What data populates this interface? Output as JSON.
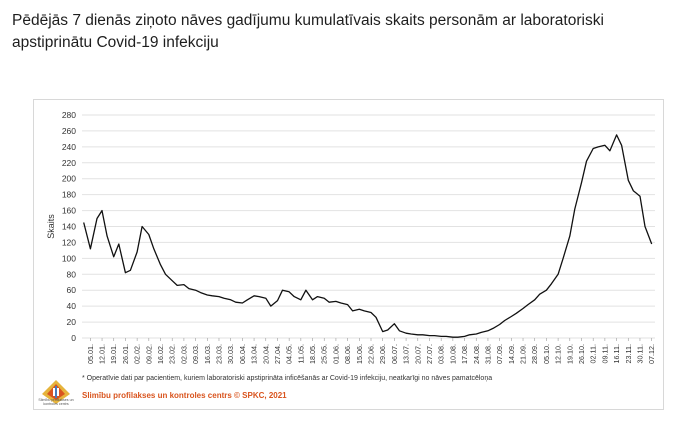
{
  "title": "Pēdējās 7 dienās ziņoto nāves gadījumu kumulatīvais skaits personām ar laboratoriski apstiprinātu Covid-19 infekciju",
  "footnote": "* Operatīvie dati par pacientiem, kuriem laboratoriski apstiprināta inficēšanās ar Covid-19 infekciju, neatkarīgi no nāves pamatcēloņa",
  "source": "Slimību profilakses un kontroles centrs © SPKC, 2021",
  "logo": {
    "icon": "spkc-logo-icon",
    "text": "Slimību profilakses un kontroles centrs"
  },
  "colors": {
    "line": "#111111",
    "grid": "#e2e2e2",
    "source": "#d9541e"
  },
  "chart_data": {
    "type": "line",
    "title": "",
    "xlabel": "",
    "ylabel": "Skaits",
    "ylim": [
      0,
      280
    ],
    "yticks": [
      0,
      20,
      40,
      60,
      80,
      100,
      120,
      140,
      160,
      180,
      200,
      220,
      240,
      260,
      280
    ],
    "grid": true,
    "legend": "none",
    "xticks": [
      "05.01.",
      "12.01.",
      "19.01.",
      "26.01.",
      "02.02.",
      "09.02.",
      "16.02.",
      "23.02.",
      "02.03.",
      "09.03.",
      "16.03.",
      "23.03.",
      "30.03.",
      "06.04.",
      "13.04.",
      "20.04.",
      "27.04.",
      "04.05.",
      "11.05.",
      "18.05.",
      "25.05.",
      "01.06.",
      "08.06.",
      "15.06.",
      "22.06.",
      "29.06.",
      "06.07.",
      "13.07.",
      "20.07.",
      "27.07.",
      "03.08.",
      "10.08.",
      "17.08.",
      "24.08.",
      "31.08.",
      "07.09.",
      "14.09.",
      "21.09.",
      "28.09.",
      "05.10.",
      "12.10.",
      "19.10.",
      "26.10.",
      "02.11.",
      "09.11.",
      "16.11.",
      "23.11.",
      "30.11.",
      "07.12."
    ],
    "series": [
      {
        "x": [
          "01.01.",
          "05.01.",
          "09.01.",
          "12.01.",
          "15.01.",
          "19.01.",
          "22.01.",
          "26.01.",
          "29.01.",
          "02.02.",
          "05.02.",
          "09.02.",
          "12.02.",
          "16.02.",
          "19.02.",
          "23.02.",
          "26.02.",
          "02.03.",
          "05.03.",
          "09.03.",
          "12.03.",
          "16.03.",
          "19.03.",
          "23.03.",
          "26.03.",
          "30.03.",
          "02.04.",
          "06.04.",
          "09.04.",
          "13.04.",
          "16.04.",
          "20.04.",
          "23.04.",
          "27.04.",
          "30.04.",
          "04.05.",
          "07.05.",
          "11.05.",
          "14.05.",
          "18.05.",
          "21.05.",
          "25.05.",
          "28.05.",
          "01.06.",
          "04.06.",
          "08.06.",
          "11.06.",
          "15.06.",
          "18.06.",
          "22.06.",
          "25.06.",
          "29.06.",
          "02.07.",
          "06.07.",
          "09.07.",
          "13.07.",
          "16.07.",
          "20.07.",
          "23.07.",
          "27.07.",
          "30.07.",
          "03.08.",
          "06.08.",
          "10.08.",
          "13.08.",
          "17.08.",
          "20.08.",
          "24.08.",
          "27.08.",
          "31.08.",
          "03.09.",
          "07.09.",
          "10.09.",
          "14.09.",
          "17.09.",
          "21.09.",
          "24.09.",
          "28.09.",
          "01.10.",
          "05.10.",
          "08.10.",
          "12.10.",
          "15.10.",
          "19.10.",
          "22.10.",
          "26.10.",
          "29.10.",
          "02.11.",
          "05.11.",
          "09.11.",
          "12.11.",
          "16.11.",
          "19.11.",
          "23.11.",
          "26.11.",
          "30.11.",
          "03.12.",
          "07.12."
        ],
        "y": [
          145,
          112,
          150,
          160,
          128,
          102,
          118,
          82,
          85,
          108,
          140,
          130,
          112,
          92,
          80,
          72,
          66,
          67,
          62,
          60,
          57,
          54,
          53,
          52,
          50,
          48,
          45,
          44,
          48,
          53,
          52,
          50,
          40,
          47,
          60,
          58,
          52,
          48,
          60,
          48,
          52,
          50,
          45,
          46,
          44,
          42,
          34,
          36,
          34,
          32,
          26,
          8,
          10,
          18,
          9,
          6,
          5,
          4,
          4,
          3,
          3,
          2,
          2,
          1,
          1,
          2,
          4,
          5,
          7,
          9,
          12,
          17,
          22,
          27,
          31,
          37,
          42,
          48,
          55,
          60,
          68,
          80,
          100,
          128,
          162,
          195,
          222,
          238,
          240,
          242,
          235,
          255,
          242,
          198,
          185,
          178,
          140,
          118
        ]
      }
    ]
  }
}
